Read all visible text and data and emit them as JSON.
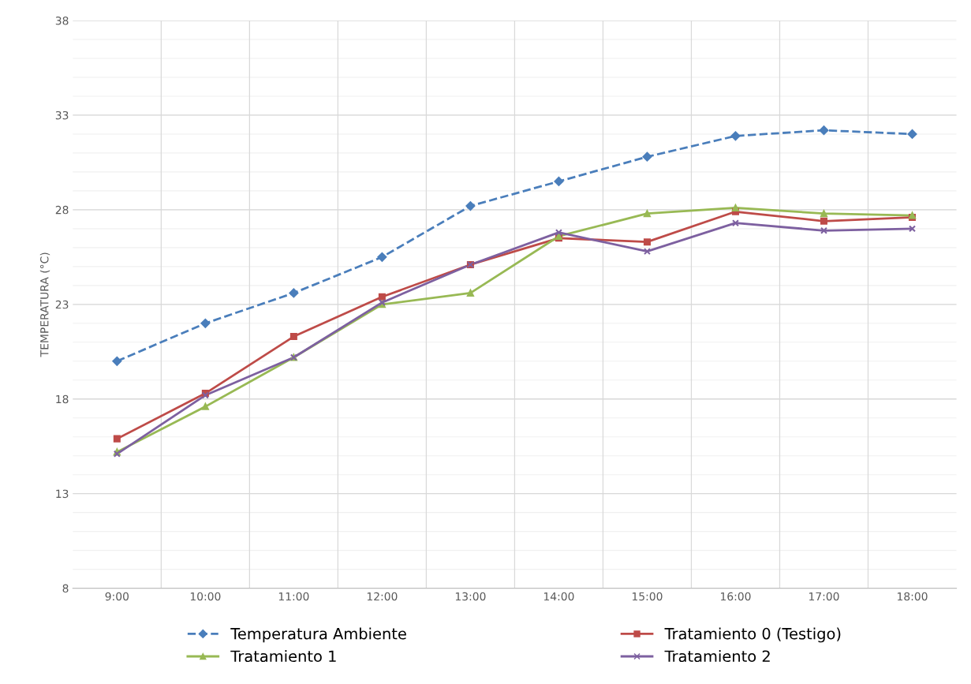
{
  "chart_data": {
    "type": "line",
    "ylabel": "TEMPERATURA (°C)",
    "categories": [
      "9:00",
      "10:00",
      "11:00",
      "12:00",
      "13:00",
      "14:00",
      "15:00",
      "16:00",
      "17:00",
      "18:00"
    ],
    "ylim": [
      8,
      38
    ],
    "yticks": [
      8,
      13,
      18,
      23,
      28,
      33,
      38
    ],
    "grid": true,
    "legend": "bottom",
    "series": [
      {
        "name": "Temperatura Ambiente",
        "color": "#4a7ebb",
        "marker": "diamond",
        "line_style": "dashed",
        "values": [
          20.0,
          22.0,
          23.6,
          25.5,
          28.2,
          29.5,
          30.8,
          31.9,
          32.2,
          32.0
        ]
      },
      {
        "name": "Tratamiento 0 (Testigo)",
        "color": "#be4b48",
        "marker": "square",
        "line_style": "solid",
        "values": [
          15.9,
          18.3,
          21.3,
          23.4,
          25.1,
          26.5,
          26.3,
          27.9,
          27.4,
          27.6
        ]
      },
      {
        "name": "Tratamiento 1",
        "color": "#98b954",
        "marker": "triangle",
        "line_style": "solid",
        "values": [
          15.2,
          17.6,
          20.2,
          23.0,
          23.6,
          26.6,
          27.8,
          28.1,
          27.8,
          27.7
        ]
      },
      {
        "name": "Tratamiento 2",
        "color": "#7d60a0",
        "marker": "cross",
        "line_style": "solid",
        "values": [
          15.1,
          18.2,
          20.2,
          23.1,
          25.1,
          26.8,
          25.8,
          27.3,
          26.9,
          27.0
        ]
      }
    ]
  }
}
